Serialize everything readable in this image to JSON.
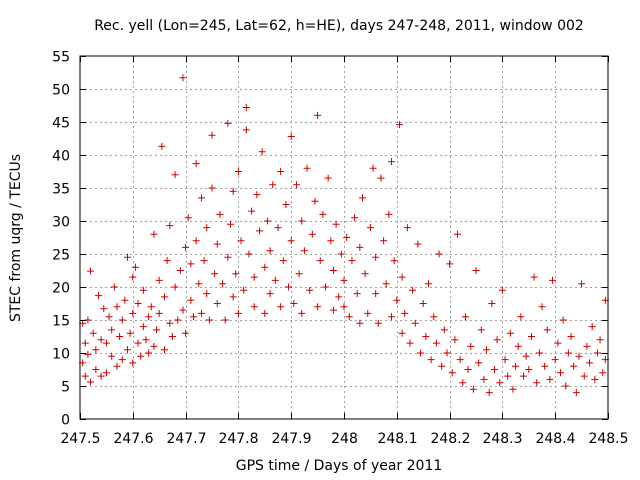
{
  "chart_data": {
    "type": "scatter",
    "title": "Rec. yell (Lon=245, Lat=62, h=HE), days 247-248, 2011, window 002",
    "xlabel": "GPS time / Days of year 2011",
    "ylabel": "STEC from uqrg / TECUs",
    "xlim": [
      247.5,
      248.5
    ],
    "ylim": [
      0,
      55
    ],
    "xticks": [
      247.5,
      247.6,
      247.7,
      247.8,
      247.9,
      248,
      248.1,
      248.2,
      248.3,
      248.4,
      248.5
    ],
    "xtick_labels": [
      "247.5",
      "247.6",
      "247.7",
      "247.8",
      "247.9",
      "248",
      "248.1",
      "248.2",
      "248.3",
      "248.4",
      "248.5"
    ],
    "yticks": [
      0,
      5,
      10,
      15,
      20,
      25,
      30,
      35,
      40,
      45,
      50,
      55
    ],
    "ytick_labels": [
      "0",
      "5",
      "10",
      "15",
      "20",
      "25",
      "30",
      "35",
      "40",
      "45",
      "50",
      "55"
    ],
    "grid": true,
    "legend": "none",
    "marker": "plus",
    "color": "#cc0000",
    "points": [
      [
        247.505,
        8.5
      ],
      [
        247.505,
        14.5
      ],
      [
        247.51,
        11.5
      ],
      [
        247.51,
        6.5
      ],
      [
        247.515,
        9.8
      ],
      [
        247.515,
        15.0
      ],
      [
        247.52,
        5.6
      ],
      [
        247.52,
        22.4
      ],
      [
        247.525,
        13.0
      ],
      [
        247.53,
        7.5
      ],
      [
        247.53,
        10.5
      ],
      [
        247.535,
        18.7
      ],
      [
        247.54,
        6.5
      ],
      [
        247.54,
        12.0
      ],
      [
        247.545,
        16.7
      ],
      [
        247.55,
        7.0
      ],
      [
        247.55,
        11.5
      ],
      [
        247.555,
        15.5
      ],
      [
        247.56,
        9.5
      ],
      [
        247.56,
        13.5
      ],
      [
        247.565,
        20.0
      ],
      [
        247.57,
        8.0
      ],
      [
        247.57,
        17.0
      ],
      [
        247.575,
        12.5
      ],
      [
        247.58,
        9.0
      ],
      [
        247.58,
        15.0
      ],
      [
        247.585,
        18.0
      ],
      [
        247.59,
        10.5
      ],
      [
        247.59,
        24.5
      ],
      [
        247.595,
        13.0
      ],
      [
        247.6,
        8.5
      ],
      [
        247.6,
        16.0
      ],
      [
        247.6,
        21.5
      ],
      [
        247.605,
        23.0
      ],
      [
        247.61,
        11.5
      ],
      [
        247.61,
        17.5
      ],
      [
        247.615,
        9.5
      ],
      [
        247.62,
        14.0
      ],
      [
        247.62,
        19.5
      ],
      [
        247.625,
        12.0
      ],
      [
        247.63,
        10.0
      ],
      [
        247.63,
        15.5
      ],
      [
        247.635,
        17.0
      ],
      [
        247.64,
        11.0
      ],
      [
        247.64,
        28.0
      ],
      [
        247.645,
        13.5
      ],
      [
        247.65,
        16.0
      ],
      [
        247.65,
        21.0
      ],
      [
        247.655,
        41.3
      ],
      [
        247.66,
        10.5
      ],
      [
        247.66,
        18.5
      ],
      [
        247.665,
        24.0
      ],
      [
        247.67,
        14.5
      ],
      [
        247.67,
        29.3
      ],
      [
        247.675,
        12.5
      ],
      [
        247.68,
        20.0
      ],
      [
        247.68,
        37.0
      ],
      [
        247.685,
        15.0
      ],
      [
        247.69,
        22.5
      ],
      [
        247.695,
        51.7
      ],
      [
        247.695,
        16.5
      ],
      [
        247.7,
        26.0
      ],
      [
        247.7,
        13.0
      ],
      [
        247.705,
        30.5
      ],
      [
        247.71,
        18.0
      ],
      [
        247.71,
        23.5
      ],
      [
        247.715,
        15.5
      ],
      [
        247.72,
        38.7
      ],
      [
        247.72,
        27.0
      ],
      [
        247.725,
        20.5
      ],
      [
        247.73,
        16.0
      ],
      [
        247.73,
        33.5
      ],
      [
        247.735,
        24.0
      ],
      [
        247.74,
        19.0
      ],
      [
        247.74,
        29.0
      ],
      [
        247.745,
        15.0
      ],
      [
        247.75,
        35.0
      ],
      [
        247.75,
        43.0
      ],
      [
        247.755,
        22.0
      ],
      [
        247.76,
        26.5
      ],
      [
        247.76,
        17.5
      ],
      [
        247.765,
        31.0
      ],
      [
        247.77,
        20.5
      ],
      [
        247.775,
        15.0
      ],
      [
        247.78,
        44.8
      ],
      [
        247.78,
        24.5
      ],
      [
        247.785,
        29.5
      ],
      [
        247.79,
        18.5
      ],
      [
        247.79,
        34.5
      ],
      [
        247.795,
        22.0
      ],
      [
        247.8,
        37.5
      ],
      [
        247.8,
        16.0
      ],
      [
        247.805,
        27.0
      ],
      [
        247.81,
        19.5
      ],
      [
        247.815,
        47.2
      ],
      [
        247.815,
        43.8
      ],
      [
        247.82,
        25.0
      ],
      [
        247.825,
        31.5
      ],
      [
        247.83,
        17.0
      ],
      [
        247.83,
        21.5
      ],
      [
        247.835,
        34.0
      ],
      [
        247.84,
        28.5
      ],
      [
        247.845,
        40.5
      ],
      [
        247.85,
        23.0
      ],
      [
        247.85,
        16.0
      ],
      [
        247.855,
        30.0
      ],
      [
        247.86,
        19.0
      ],
      [
        247.86,
        25.5
      ],
      [
        247.865,
        35.5
      ],
      [
        247.87,
        21.0
      ],
      [
        247.875,
        29.0
      ],
      [
        247.88,
        17.0
      ],
      [
        247.88,
        37.5
      ],
      [
        247.885,
        24.0
      ],
      [
        247.89,
        32.5
      ],
      [
        247.895,
        20.0
      ],
      [
        247.9,
        42.8
      ],
      [
        247.9,
        27.0
      ],
      [
        247.905,
        17.5
      ],
      [
        247.91,
        35.5
      ],
      [
        247.915,
        22.0
      ],
      [
        247.92,
        30.0
      ],
      [
        247.92,
        16.0
      ],
      [
        247.925,
        25.5
      ],
      [
        247.93,
        38.0
      ],
      [
        247.935,
        19.5
      ],
      [
        247.94,
        28.0
      ],
      [
        247.945,
        33.0
      ],
      [
        247.95,
        46.0
      ],
      [
        247.95,
        17.0
      ],
      [
        247.955,
        24.0
      ],
      [
        247.96,
        31.0
      ],
      [
        247.965,
        20.0
      ],
      [
        247.97,
        36.5
      ],
      [
        247.975,
        27.0
      ],
      [
        247.98,
        16.5
      ],
      [
        247.98,
        22.5
      ],
      [
        247.985,
        29.5
      ],
      [
        247.99,
        18.5
      ],
      [
        247.995,
        25.0
      ],
      [
        248.0,
        21.0
      ],
      [
        248.0,
        17.0
      ],
      [
        248.005,
        27.5
      ],
      [
        248.01,
        15.5
      ],
      [
        248.015,
        24.0
      ],
      [
        248.02,
        30.5
      ],
      [
        248.025,
        19.0
      ],
      [
        248.03,
        14.5
      ],
      [
        248.03,
        26.0
      ],
      [
        248.035,
        33.5
      ],
      [
        248.04,
        22.0
      ],
      [
        248.045,
        16.0
      ],
      [
        248.05,
        29.0
      ],
      [
        248.055,
        38.0
      ],
      [
        248.06,
        19.0
      ],
      [
        248.06,
        24.5
      ],
      [
        248.065,
        14.5
      ],
      [
        248.07,
        36.5
      ],
      [
        248.075,
        27.0
      ],
      [
        248.08,
        20.5
      ],
      [
        248.085,
        31.0
      ],
      [
        248.09,
        15.5
      ],
      [
        248.09,
        39.0
      ],
      [
        248.095,
        24.0
      ],
      [
        248.1,
        18.0
      ],
      [
        248.105,
        44.6
      ],
      [
        248.11,
        13.0
      ],
      [
        248.11,
        21.5
      ],
      [
        248.115,
        16.0
      ],
      [
        248.12,
        29.0
      ],
      [
        248.125,
        11.5
      ],
      [
        248.13,
        19.5
      ],
      [
        248.135,
        14.5
      ],
      [
        248.14,
        26.5
      ],
      [
        248.145,
        10.0
      ],
      [
        248.15,
        17.5
      ],
      [
        248.155,
        12.5
      ],
      [
        248.16,
        20.5
      ],
      [
        248.165,
        9.0
      ],
      [
        248.17,
        15.5
      ],
      [
        248.175,
        11.5
      ],
      [
        248.18,
        25.0
      ],
      [
        248.185,
        8.0
      ],
      [
        248.19,
        13.5
      ],
      [
        248.195,
        10.0
      ],
      [
        248.2,
        23.5
      ],
      [
        248.205,
        7.0
      ],
      [
        248.21,
        12.0
      ],
      [
        248.215,
        28.0
      ],
      [
        248.22,
        9.0
      ],
      [
        248.225,
        5.5
      ],
      [
        248.23,
        15.5
      ],
      [
        248.235,
        7.5
      ],
      [
        248.24,
        11.0
      ],
      [
        248.245,
        4.5
      ],
      [
        248.25,
        22.5
      ],
      [
        248.255,
        8.5
      ],
      [
        248.26,
        13.5
      ],
      [
        248.265,
        6.0
      ],
      [
        248.27,
        10.5
      ],
      [
        248.275,
        4.0
      ],
      [
        248.28,
        17.5
      ],
      [
        248.285,
        7.5
      ],
      [
        248.29,
        12.0
      ],
      [
        248.295,
        5.5
      ],
      [
        248.3,
        19.5
      ],
      [
        248.305,
        9.0
      ],
      [
        248.31,
        6.5
      ],
      [
        248.315,
        13.0
      ],
      [
        248.32,
        4.5
      ],
      [
        248.325,
        8.0
      ],
      [
        248.33,
        11.0
      ],
      [
        248.335,
        15.5
      ],
      [
        248.34,
        6.5
      ],
      [
        248.345,
        9.5
      ],
      [
        248.35,
        7.5
      ],
      [
        248.355,
        12.5
      ],
      [
        248.36,
        21.5
      ],
      [
        248.365,
        5.5
      ],
      [
        248.37,
        10.0
      ],
      [
        248.375,
        17.0
      ],
      [
        248.38,
        8.0
      ],
      [
        248.385,
        13.5
      ],
      [
        248.39,
        6.0
      ],
      [
        248.395,
        21.0
      ],
      [
        248.4,
        9.0
      ],
      [
        248.405,
        11.5
      ],
      [
        248.41,
        7.0
      ],
      [
        248.415,
        15.0
      ],
      [
        248.42,
        5.0
      ],
      [
        248.425,
        10.0
      ],
      [
        248.43,
        12.5
      ],
      [
        248.435,
        8.0
      ],
      [
        248.44,
        4.0
      ],
      [
        248.445,
        9.5
      ],
      [
        248.45,
        20.5
      ],
      [
        248.455,
        6.5
      ],
      [
        248.46,
        11.0
      ],
      [
        248.465,
        8.5
      ],
      [
        248.47,
        14.0
      ],
      [
        248.475,
        6.0
      ],
      [
        248.48,
        10.0
      ],
      [
        248.485,
        12.0
      ],
      [
        248.49,
        7.0
      ],
      [
        248.495,
        18.0
      ],
      [
        248.495,
        9.0
      ]
    ]
  }
}
